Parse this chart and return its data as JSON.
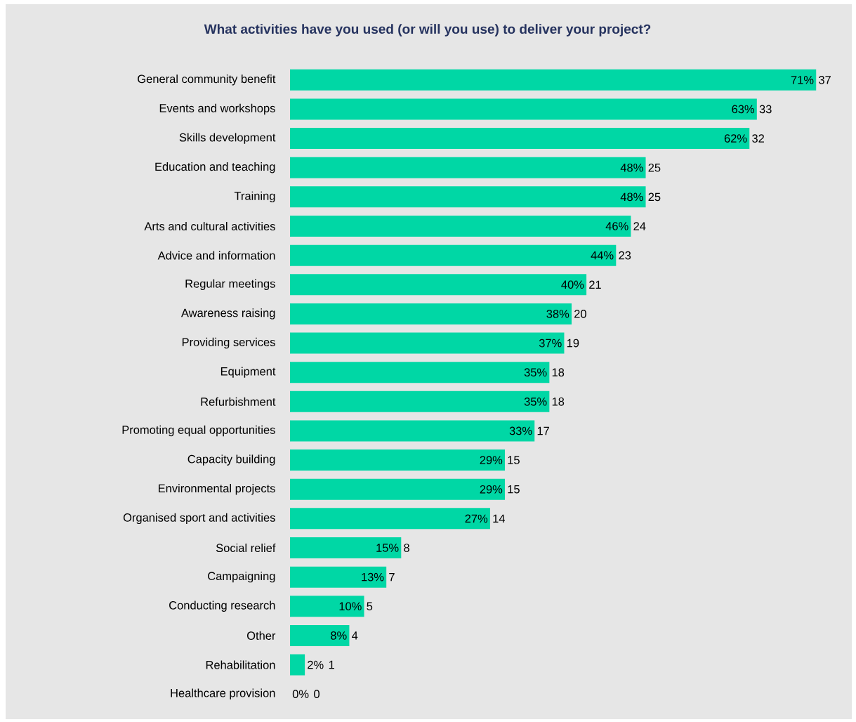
{
  "chart_data": {
    "type": "bar",
    "orientation": "horizontal",
    "title": "What activities have you used (or will you use) to deliver your project?",
    "categories": [
      "General community benefit",
      "Events and workshops",
      "Skills development",
      "Education and teaching",
      "Training",
      "Arts and cultural activities",
      "Advice and information",
      "Regular meetings",
      "Awareness raising",
      "Providing services",
      "Equipment",
      "Refurbishment",
      "Promoting equal opportunities",
      "Capacity building",
      "Environmental projects",
      "Organised sport and activities",
      "Social relief",
      "Campaigning",
      "Conducting research",
      "Other",
      "Rehabilitation",
      "Healthcare provision"
    ],
    "values": [
      71,
      63,
      62,
      48,
      48,
      46,
      44,
      40,
      38,
      37,
      35,
      35,
      33,
      29,
      29,
      27,
      15,
      13,
      10,
      8,
      2,
      0
    ],
    "value_labels": [
      "71%",
      "63%",
      "62%",
      "48%",
      "48%",
      "46%",
      "44%",
      "40%",
      "38%",
      "37%",
      "35%",
      "35%",
      "33%",
      "29%",
      "29%",
      "27%",
      "15%",
      "13%",
      "10%",
      "8%",
      "2%",
      "0%"
    ],
    "color": "#00d7a5",
    "xlim": [
      0,
      76
    ],
    "tick_labels": "y",
    "annotations": [
      {
        "text": "37",
        "x": 71,
        "y": "General community benefit"
      },
      {
        "text": "33",
        "x": 63,
        "y": "Events and workshops"
      },
      {
        "text": "32",
        "x": 62,
        "y": "Skills development"
      },
      {
        "text": "25",
        "x": 48,
        "y": "Education and teaching"
      },
      {
        "text": "25",
        "x": 48,
        "y": "Training"
      },
      {
        "text": "24",
        "x": 46,
        "y": "Arts and cultural activities"
      },
      {
        "text": "23",
        "x": 44,
        "y": "Advice and information"
      },
      {
        "text": "21",
        "x": 40,
        "y": "Regular meetings"
      },
      {
        "text": "20",
        "x": 38,
        "y": "Awareness raising"
      },
      {
        "text": "19",
        "x": 37,
        "y": "Providing services"
      },
      {
        "text": "18",
        "x": 35,
        "y": "Equipment"
      },
      {
        "text": "18",
        "x": 35,
        "y": "Refurbishment"
      },
      {
        "text": "17",
        "x": 33,
        "y": "Promoting equal opportunities"
      },
      {
        "text": "15",
        "x": 29,
        "y": "Capacity building"
      },
      {
        "text": "15",
        "x": 29,
        "y": "Environmental projects"
      },
      {
        "text": "14",
        "x": 27,
        "y": "Organised sport and activities"
      },
      {
        "text": "8",
        "x": 15,
        "y": "Social relief"
      },
      {
        "text": "7",
        "x": 13,
        "y": "Campaigning"
      },
      {
        "text": "5",
        "x": 10,
        "y": "Conducting research"
      },
      {
        "text": "4",
        "x": 8,
        "y": "Other"
      },
      {
        "text": "1",
        "x": 2,
        "y": "Rehabilitation"
      },
      {
        "text": "0",
        "x": 0,
        "y": "Healthcare provision"
      }
    ]
  }
}
